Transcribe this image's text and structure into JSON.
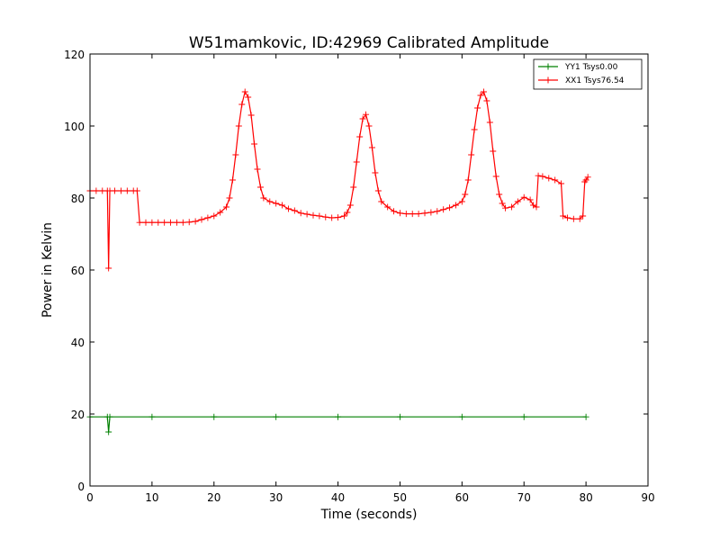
{
  "chart_data": {
    "type": "line",
    "title": "W51mamkovic, ID:42969 Calibrated Amplitude",
    "xlabel": "Time (seconds)",
    "ylabel": "Power in Kelvin",
    "xlim": [
      0,
      90
    ],
    "ylim": [
      0,
      120
    ],
    "xticks": [
      0,
      10,
      20,
      30,
      40,
      50,
      60,
      70,
      80,
      90
    ],
    "yticks": [
      0,
      20,
      40,
      60,
      80,
      100,
      120
    ],
    "xtick_labels": [
      "0",
      "10",
      "20",
      "30",
      "40",
      "50",
      "60",
      "70",
      "80",
      "90"
    ],
    "ytick_labels": [
      "0",
      "20",
      "40",
      "60",
      "80",
      "100",
      "120"
    ],
    "grid": false,
    "legend_position": "top-right",
    "marker": "+",
    "series": [
      {
        "name": "YY1 Tsys0.00",
        "color": "#008000",
        "points": [
          [
            0,
            19.2
          ],
          [
            2.8,
            19.2
          ],
          [
            3.0,
            15.0
          ],
          [
            3.2,
            19.2
          ],
          [
            10,
            19.2
          ],
          [
            20,
            19.2
          ],
          [
            30,
            19.2
          ],
          [
            40,
            19.2
          ],
          [
            50,
            19.2
          ],
          [
            60,
            19.2
          ],
          [
            70,
            19.2
          ],
          [
            80,
            19.2
          ]
        ]
      },
      {
        "name": "XX1 Tsys76.54",
        "color": "#ff0000",
        "points": [
          [
            0,
            82
          ],
          [
            1,
            82
          ],
          [
            2,
            82
          ],
          [
            2.8,
            82
          ],
          [
            3.0,
            60.5
          ],
          [
            3.2,
            82
          ],
          [
            4,
            82
          ],
          [
            5,
            82
          ],
          [
            6,
            82
          ],
          [
            7,
            82
          ],
          [
            7.6,
            82
          ],
          [
            8.0,
            73.2
          ],
          [
            9,
            73.2
          ],
          [
            10,
            73.2
          ],
          [
            11,
            73.2
          ],
          [
            12,
            73.2
          ],
          [
            13,
            73.2
          ],
          [
            14,
            73.2
          ],
          [
            15,
            73.2
          ],
          [
            16,
            73.3
          ],
          [
            17,
            73.5
          ],
          [
            18,
            74
          ],
          [
            19,
            74.5
          ],
          [
            20,
            75
          ],
          [
            21,
            76
          ],
          [
            22,
            77.5
          ],
          [
            22.5,
            80
          ],
          [
            23,
            85
          ],
          [
            23.5,
            92
          ],
          [
            24,
            100
          ],
          [
            24.5,
            106
          ],
          [
            25,
            109.5
          ],
          [
            25.5,
            108
          ],
          [
            26,
            103
          ],
          [
            26.5,
            95
          ],
          [
            27,
            88
          ],
          [
            27.5,
            83
          ],
          [
            28,
            80
          ],
          [
            29,
            79
          ],
          [
            30,
            78.5
          ],
          [
            31,
            78
          ],
          [
            32,
            77
          ],
          [
            33,
            76.5
          ],
          [
            34,
            75.8
          ],
          [
            35,
            75.5
          ],
          [
            36,
            75.2
          ],
          [
            37,
            75
          ],
          [
            38,
            74.7
          ],
          [
            39,
            74.5
          ],
          [
            40,
            74.6
          ],
          [
            41,
            75
          ],
          [
            41.5,
            76
          ],
          [
            42,
            78
          ],
          [
            42.5,
            83
          ],
          [
            43,
            90
          ],
          [
            43.5,
            97
          ],
          [
            44,
            102
          ],
          [
            44.5,
            103.2
          ],
          [
            45,
            100
          ],
          [
            45.5,
            94
          ],
          [
            46,
            87
          ],
          [
            46.5,
            82
          ],
          [
            47,
            79
          ],
          [
            48,
            77.5
          ],
          [
            49,
            76.3
          ],
          [
            50,
            75.8
          ],
          [
            51,
            75.6
          ],
          [
            52,
            75.6
          ],
          [
            53,
            75.6
          ],
          [
            54,
            75.8
          ],
          [
            55,
            76
          ],
          [
            56,
            76.3
          ],
          [
            57,
            76.8
          ],
          [
            58,
            77.3
          ],
          [
            59,
            78
          ],
          [
            60,
            79
          ],
          [
            60.5,
            81
          ],
          [
            61,
            85
          ],
          [
            61.5,
            92
          ],
          [
            62,
            99
          ],
          [
            62.5,
            105
          ],
          [
            63,
            108.5
          ],
          [
            63.5,
            109.5
          ],
          [
            64,
            107
          ],
          [
            64.5,
            101
          ],
          [
            65,
            93
          ],
          [
            65.5,
            86
          ],
          [
            66,
            81
          ],
          [
            66.5,
            78.5
          ],
          [
            67,
            77.2
          ],
          [
            68,
            77.5
          ],
          [
            69,
            79
          ],
          [
            70,
            80.2
          ],
          [
            71,
            79.5
          ],
          [
            71.5,
            78
          ],
          [
            72,
            77.5
          ],
          [
            72.3,
            86.2
          ],
          [
            73,
            86
          ],
          [
            74,
            85.5
          ],
          [
            75,
            85
          ],
          [
            76,
            84
          ],
          [
            76.3,
            75
          ],
          [
            77,
            74.5
          ],
          [
            78,
            74.2
          ],
          [
            79,
            74.2
          ],
          [
            79.5,
            75
          ],
          [
            79.8,
            84.5
          ],
          [
            80,
            85
          ],
          [
            80.3,
            85.8
          ]
        ]
      }
    ]
  }
}
